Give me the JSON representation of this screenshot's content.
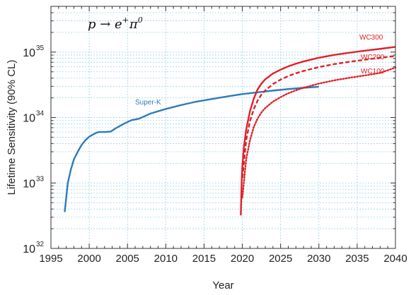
{
  "chart_data": {
    "type": "line",
    "title": "",
    "xlabel": "Year",
    "ylabel": "Lifetime Sensitivity (90% CL)",
    "annotation": {
      "base": "p → e",
      "sup1": "+",
      "mid": "π",
      "sup2": "0"
    },
    "xlim": [
      1995,
      2040
    ],
    "ylim": [
      1e+32,
      5e+35
    ],
    "yscale": "log",
    "grid": true,
    "x_ticks": [
      1995,
      2000,
      2005,
      2010,
      2015,
      2020,
      2025,
      2030,
      2035,
      2040
    ],
    "y_ticks": [
      {
        "value": 1e+32,
        "base": "10",
        "exp": "32"
      },
      {
        "value": 1e+33,
        "base": "10",
        "exp": "33"
      },
      {
        "value": 1e+34,
        "base": "10",
        "exp": "34"
      },
      {
        "value": 1e+35,
        "base": "10",
        "exp": "35"
      }
    ],
    "series": [
      {
        "name": "Super-K",
        "color": "#2e7ab8",
        "style": "solid",
        "x": [
          1996.8,
          1997.2,
          1997.6,
          1998.0,
          1998.5,
          1999.0,
          1999.5,
          2000.0,
          2000.5,
          2001.0,
          2001.3,
          2002.0,
          2002.8,
          2003.5,
          2004.5,
          2005.5,
          2006.5,
          2008.0,
          2010.0,
          2012.0,
          2014.0,
          2016.0,
          2018.0,
          2020.0,
          2022.0,
          2024.0,
          2026.0,
          2028.0,
          2030.0
        ],
        "y": [
          3.6e+32,
          1e+33,
          1.6e+33,
          2.3e+33,
          3e+33,
          3.8e+33,
          4.5e+33,
          5.1e+33,
          5.5e+33,
          5.9e+33,
          6e+33,
          6e+33,
          6.1e+33,
          6.9e+33,
          8e+33,
          9.1e+33,
          9.6e+33,
          1.15e+34,
          1.35e+34,
          1.55e+34,
          1.75e+34,
          1.92e+34,
          2.1e+34,
          2.28e+34,
          2.43e+34,
          2.58e+34,
          2.72e+34,
          2.85e+34,
          2.95e+34
        ]
      },
      {
        "name": "WC300",
        "color": "#e02127",
        "style": "solid",
        "x": [
          2019.8,
          2019.9,
          2020.0,
          2020.2,
          2020.5,
          2021.0,
          2021.5,
          2022.0,
          2022.5,
          2023.0,
          2024.0,
          2025.0,
          2026.0,
          2027.0,
          2028.0,
          2030.0,
          2032.0,
          2034.0,
          2036.0,
          2038.0,
          2040.0
        ],
        "y": [
          3.2e+32,
          9e+32,
          1.8e+33,
          3.5e+33,
          6.5e+33,
          1.25e+34,
          1.95e+34,
          2.7e+34,
          3.3e+34,
          3.85e+34,
          4.7e+34,
          5.4e+34,
          6.05e+34,
          6.65e+34,
          7.2e+34,
          8.2e+34,
          9.05e+34,
          9.8e+34,
          1.05e+35,
          1.12e+35,
          1.2e+35
        ]
      },
      {
        "name": "WC200",
        "color": "#e02127",
        "style": "dashed",
        "x": [
          2020.0,
          2020.5,
          2021.0,
          2021.5,
          2022.0,
          2022.5,
          2023.0,
          2024.0,
          2025.0,
          2026.0,
          2027.0,
          2028.0,
          2030.0,
          2032.0,
          2034.0,
          2036.0,
          2038.0,
          2040.0
        ],
        "y": [
          1.2e+33,
          4.5e+33,
          8.8e+33,
          1.35e+34,
          1.82e+34,
          2.25e+34,
          2.6e+34,
          3.25e+34,
          3.8e+34,
          4.3e+34,
          4.75e+34,
          5.15e+34,
          5.9e+34,
          6.55e+34,
          7.1e+34,
          7.65e+34,
          8.2e+34,
          8.7e+34
        ]
      },
      {
        "name": "WC100",
        "color": "#e02127",
        "style": "dotted",
        "x": [
          2020.0,
          2020.5,
          2021.0,
          2021.5,
          2022.0,
          2022.5,
          2023.0,
          2024.0,
          2025.0,
          2026.0,
          2027.0,
          2028.0,
          2030.0,
          2032.0,
          2034.0,
          2036.0,
          2038.0,
          2040.0
        ],
        "y": [
          6e+32,
          2.3e+33,
          4.5e+33,
          7.2e+33,
          9.7e+33,
          1.2e+34,
          1.4e+34,
          1.75e+34,
          2.05e+34,
          2.35e+34,
          2.6e+34,
          2.85e+34,
          3.3e+34,
          3.7e+34,
          4.05e+34,
          4.4e+34,
          4.8e+34,
          5.8e+34
        ]
      }
    ]
  }
}
